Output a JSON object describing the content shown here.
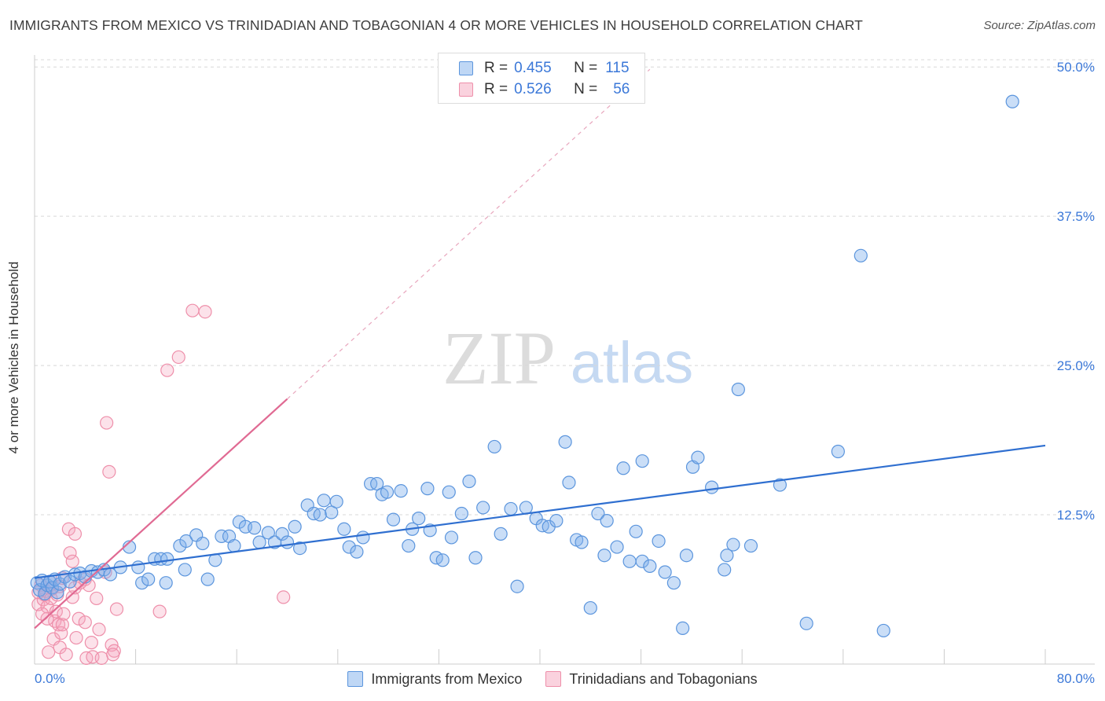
{
  "title": "IMMIGRANTS FROM MEXICO VS TRINIDADIAN AND TOBAGONIAN 4 OR MORE VEHICLES IN HOUSEHOLD CORRELATION CHART",
  "source": "Source: ZipAtlas.com",
  "watermark": {
    "zip": "ZIP",
    "atlas": "atlas"
  },
  "legend": {
    "rows": [
      {
        "r_label": "R =",
        "r_value": "0.455",
        "n_label": "N =",
        "n_value": "115"
      },
      {
        "r_label": "R =",
        "r_value": "0.526",
        "n_label": "N =",
        "n_value": "56"
      }
    ]
  },
  "bottom_legend": [
    "Immigrants from Mexico",
    "Trinidadians and Tobagonians"
  ],
  "chart_data": {
    "type": "scatter",
    "ylabel": "4 or more Vehicles in Household",
    "xlim": [
      0,
      80
    ],
    "ylim": [
      0,
      51
    ],
    "x_tick_labels": [
      "0.0%",
      "80.0%"
    ],
    "y_tick_values": [
      12.5,
      25.0,
      37.5,
      50.0
    ],
    "y_tick_labels": [
      "12.5%",
      "25.0%",
      "37.5%",
      "50.0%"
    ],
    "grid": true,
    "legend_position": "top-center",
    "colors": {
      "mexico_fill": "rgba(128,176,236,0.42)",
      "mexico_stroke": "#5b95dd",
      "mexico_line": "#2f6fd0",
      "tt_fill": "rgba(245,165,190,0.32)",
      "tt_stroke": "#ee8faa",
      "tt_line": "#e06a93"
    },
    "series": [
      {
        "name": "Immigrants from Mexico",
        "trend": {
          "x": [
            0,
            80
          ],
          "y": [
            7.2,
            18.3
          ]
        },
        "points": [
          [
            0.2,
            6.8
          ],
          [
            0.4,
            6.2
          ],
          [
            0.6,
            7.0
          ],
          [
            0.8,
            5.9
          ],
          [
            1.0,
            6.6
          ],
          [
            1.2,
            6.9
          ],
          [
            1.4,
            6.4
          ],
          [
            1.6,
            7.1
          ],
          [
            1.8,
            6.0
          ],
          [
            2.0,
            6.7
          ],
          [
            2.4,
            7.3
          ],
          [
            2.8,
            6.9
          ],
          [
            3.2,
            7.5
          ],
          [
            3.6,
            7.6
          ],
          [
            4.0,
            7.3
          ],
          [
            4.5,
            7.8
          ],
          [
            5.0,
            7.7
          ],
          [
            5.5,
            7.9
          ],
          [
            6.0,
            7.5
          ],
          [
            6.8,
            8.1
          ],
          [
            7.5,
            9.8
          ],
          [
            8.2,
            8.1
          ],
          [
            8.5,
            6.8
          ],
          [
            9.0,
            7.1
          ],
          [
            9.5,
            8.8
          ],
          [
            10.0,
            8.8
          ],
          [
            10.4,
            6.8
          ],
          [
            10.5,
            8.8
          ],
          [
            11.5,
            9.9
          ],
          [
            11.9,
            7.9
          ],
          [
            12.0,
            10.3
          ],
          [
            12.8,
            10.8
          ],
          [
            13.3,
            10.1
          ],
          [
            13.7,
            7.1
          ],
          [
            14.3,
            8.7
          ],
          [
            14.8,
            10.7
          ],
          [
            15.4,
            10.7
          ],
          [
            15.8,
            9.9
          ],
          [
            16.2,
            11.9
          ],
          [
            16.7,
            11.5
          ],
          [
            17.4,
            11.4
          ],
          [
            17.8,
            10.2
          ],
          [
            18.5,
            11.0
          ],
          [
            19.0,
            10.2
          ],
          [
            19.6,
            10.9
          ],
          [
            20.0,
            10.2
          ],
          [
            20.6,
            11.5
          ],
          [
            21.0,
            9.7
          ],
          [
            21.6,
            13.3
          ],
          [
            22.1,
            12.6
          ],
          [
            22.6,
            12.5
          ],
          [
            22.9,
            13.7
          ],
          [
            23.5,
            12.7
          ],
          [
            23.9,
            13.6
          ],
          [
            24.5,
            11.3
          ],
          [
            24.9,
            9.8
          ],
          [
            25.5,
            9.4
          ],
          [
            26.0,
            10.6
          ],
          [
            26.6,
            15.1
          ],
          [
            27.1,
            15.1
          ],
          [
            27.5,
            14.2
          ],
          [
            27.9,
            14.4
          ],
          [
            28.4,
            12.1
          ],
          [
            29.0,
            14.5
          ],
          [
            29.6,
            9.9
          ],
          [
            29.9,
            11.3
          ],
          [
            30.4,
            12.2
          ],
          [
            31.1,
            14.7
          ],
          [
            31.3,
            11.2
          ],
          [
            31.8,
            8.9
          ],
          [
            32.3,
            8.7
          ],
          [
            32.8,
            14.4
          ],
          [
            33.0,
            10.6
          ],
          [
            33.8,
            12.6
          ],
          [
            34.4,
            15.3
          ],
          [
            34.9,
            8.9
          ],
          [
            35.5,
            13.1
          ],
          [
            36.4,
            18.2
          ],
          [
            36.9,
            10.9
          ],
          [
            37.7,
            13.0
          ],
          [
            38.2,
            6.5
          ],
          [
            38.9,
            13.1
          ],
          [
            39.7,
            12.2
          ],
          [
            40.2,
            11.6
          ],
          [
            40.7,
            11.5
          ],
          [
            41.3,
            12.0
          ],
          [
            42.0,
            18.6
          ],
          [
            42.3,
            15.2
          ],
          [
            42.9,
            10.4
          ],
          [
            43.3,
            10.2
          ],
          [
            44.0,
            4.7
          ],
          [
            44.6,
            12.6
          ],
          [
            45.1,
            9.1
          ],
          [
            45.3,
            12.0
          ],
          [
            46.1,
            9.8
          ],
          [
            46.6,
            16.4
          ],
          [
            47.1,
            8.6
          ],
          [
            47.6,
            11.1
          ],
          [
            48.1,
            17.0
          ],
          [
            48.1,
            8.6
          ],
          [
            48.7,
            8.2
          ],
          [
            49.4,
            10.3
          ],
          [
            49.9,
            7.7
          ],
          [
            50.6,
            6.8
          ],
          [
            51.3,
            3.0
          ],
          [
            51.6,
            9.1
          ],
          [
            52.1,
            16.5
          ],
          [
            52.5,
            17.3
          ],
          [
            53.6,
            14.8
          ],
          [
            54.6,
            7.9
          ],
          [
            54.8,
            9.1
          ],
          [
            55.3,
            10.0
          ],
          [
            55.7,
            23.0
          ],
          [
            56.7,
            9.9
          ],
          [
            59.0,
            15.0
          ],
          [
            61.1,
            3.4
          ],
          [
            63.6,
            17.8
          ],
          [
            65.4,
            34.2
          ],
          [
            67.2,
            2.8
          ],
          [
            77.4,
            47.1
          ]
        ]
      },
      {
        "name": "Trinidadians and Tobagonians",
        "trend": {
          "x": [
            0,
            20
          ],
          "y": [
            3.0,
            22.2
          ]
        },
        "trend_dashed": {
          "x": [
            20,
            48.7
          ],
          "y": [
            22.2,
            49.8
          ]
        },
        "points": [
          [
            0.3,
            5.0
          ],
          [
            0.5,
            6.6
          ],
          [
            0.7,
            5.4
          ],
          [
            0.8,
            5.8
          ],
          [
            0.9,
            6.1
          ],
          [
            1.0,
            4.8
          ],
          [
            1.1,
            1.0
          ],
          [
            1.2,
            6.9
          ],
          [
            1.3,
            5.5
          ],
          [
            1.4,
            6.3
          ],
          [
            1.5,
            2.1
          ],
          [
            1.6,
            3.6
          ],
          [
            1.7,
            4.4
          ],
          [
            1.8,
            5.8
          ],
          [
            1.9,
            3.3
          ],
          [
            2.0,
            6.5
          ],
          [
            2.0,
            1.4
          ],
          [
            2.1,
            2.6
          ],
          [
            2.2,
            3.3
          ],
          [
            2.3,
            4.2
          ],
          [
            2.5,
            0.8
          ],
          [
            2.7,
            11.3
          ],
          [
            2.8,
            9.3
          ],
          [
            3.0,
            5.6
          ],
          [
            3.0,
            8.6
          ],
          [
            3.2,
            6.4
          ],
          [
            3.2,
            10.9
          ],
          [
            3.5,
            3.8
          ],
          [
            4.0,
            7.1
          ],
          [
            4.1,
            0.5
          ],
          [
            4.3,
            6.6
          ],
          [
            4.5,
            1.8
          ],
          [
            4.6,
            0.6
          ],
          [
            4.9,
            5.5
          ],
          [
            5.1,
            2.9
          ],
          [
            5.3,
            0.5
          ],
          [
            5.6,
            7.7
          ],
          [
            5.7,
            20.2
          ],
          [
            6.1,
            1.6
          ],
          [
            6.3,
            1.1
          ],
          [
            6.5,
            4.6
          ],
          [
            9.9,
            4.4
          ],
          [
            10.5,
            24.6
          ],
          [
            11.4,
            25.7
          ],
          [
            12.5,
            29.6
          ],
          [
            13.5,
            29.5
          ],
          [
            19.7,
            5.6
          ],
          [
            4.0,
            3.5
          ],
          [
            3.3,
            2.2
          ],
          [
            1.0,
            3.8
          ],
          [
            0.6,
            4.2
          ],
          [
            2.2,
            7.2
          ],
          [
            3.6,
            6.8
          ],
          [
            0.3,
            6.0
          ],
          [
            6.2,
            0.8
          ],
          [
            5.9,
            16.1
          ]
        ]
      }
    ]
  }
}
